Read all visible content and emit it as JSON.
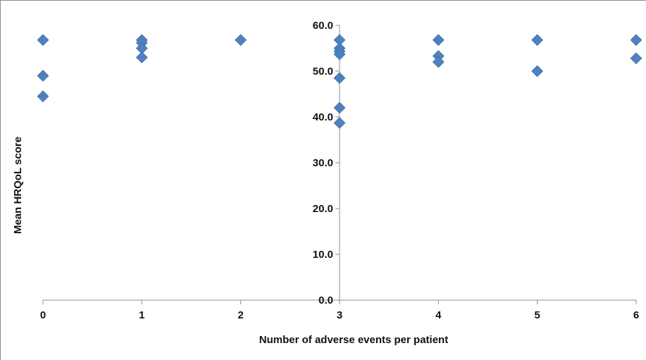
{
  "chart_data": {
    "type": "scatter",
    "title": "",
    "xlabel": "Number of adverse events per patient",
    "ylabel": "Mean HRQoL score",
    "xlim": [
      0,
      6
    ],
    "ylim": [
      0,
      60
    ],
    "y_axis_position_x": 3,
    "grid": false,
    "legend": "none",
    "x_ticks": [
      "0",
      "1",
      "2",
      "3",
      "4",
      "5",
      "6"
    ],
    "y_ticks": [
      "0.0",
      "10.0",
      "20.0",
      "30.0",
      "40.0",
      "50.0",
      "60.0"
    ],
    "colors": {
      "marker": "#4f81bd",
      "axis": "#8c8c8c"
    },
    "series": [
      {
        "marker": "diamond",
        "points": [
          {
            "x": 0,
            "y": 56.8
          },
          {
            "x": 0,
            "y": 49.0
          },
          {
            "x": 0,
            "y": 44.5
          },
          {
            "x": 1,
            "y": 56.8
          },
          {
            "x": 1,
            "y": 56.2
          },
          {
            "x": 1,
            "y": 55.0
          },
          {
            "x": 1,
            "y": 53.0
          },
          {
            "x": 2,
            "y": 56.8
          },
          {
            "x": 3,
            "y": 56.8
          },
          {
            "x": 3,
            "y": 55.0
          },
          {
            "x": 3,
            "y": 54.3
          },
          {
            "x": 3,
            "y": 53.7
          },
          {
            "x": 3,
            "y": 48.5
          },
          {
            "x": 3,
            "y": 42.0
          },
          {
            "x": 3,
            "y": 38.7
          },
          {
            "x": 4,
            "y": 56.8
          },
          {
            "x": 4,
            "y": 53.3
          },
          {
            "x": 4,
            "y": 52.0
          },
          {
            "x": 5,
            "y": 56.8
          },
          {
            "x": 5,
            "y": 50.0
          },
          {
            "x": 6,
            "y": 56.8
          },
          {
            "x": 6,
            "y": 52.8
          }
        ]
      }
    ]
  }
}
